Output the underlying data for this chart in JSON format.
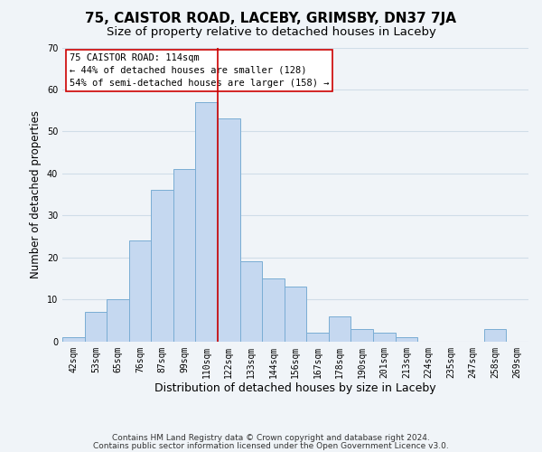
{
  "title1": "75, CAISTOR ROAD, LACEBY, GRIMSBY, DN37 7JA",
  "title2": "Size of property relative to detached houses in Laceby",
  "xlabel": "Distribution of detached houses by size in Laceby",
  "ylabel": "Number of detached properties",
  "bar_labels": [
    "42sqm",
    "53sqm",
    "65sqm",
    "76sqm",
    "87sqm",
    "99sqm",
    "110sqm",
    "122sqm",
    "133sqm",
    "144sqm",
    "156sqm",
    "167sqm",
    "178sqm",
    "190sqm",
    "201sqm",
    "213sqm",
    "224sqm",
    "235sqm",
    "247sqm",
    "258sqm",
    "269sqm"
  ],
  "bar_heights": [
    1,
    7,
    10,
    24,
    36,
    41,
    57,
    53,
    19,
    15,
    13,
    2,
    6,
    3,
    2,
    1,
    0,
    0,
    0,
    3,
    0
  ],
  "bar_color": "#c5d8f0",
  "bar_edge_color": "#7aadd4",
  "grid_color": "#d0dde8",
  "property_line_x": 6,
  "property_line_color": "#cc0000",
  "annotation_line1": "75 CAISTOR ROAD: 114sqm",
  "annotation_line2": "← 44% of detached houses are smaller (128)",
  "annotation_line3": "54% of semi-detached houses are larger (158) →",
  "annotation_box_facecolor": "#ffffff",
  "annotation_box_edgecolor": "#cc0000",
  "footnote1": "Contains HM Land Registry data © Crown copyright and database right 2024.",
  "footnote2": "Contains public sector information licensed under the Open Government Licence v3.0.",
  "ylim": [
    0,
    70
  ],
  "yticks": [
    0,
    10,
    20,
    30,
    40,
    50,
    60,
    70
  ],
  "title1_fontsize": 11,
  "title2_fontsize": 9.5,
  "xlabel_fontsize": 9,
  "ylabel_fontsize": 8.5,
  "tick_fontsize": 7,
  "annotation_fontsize": 7.5,
  "footnote_fontsize": 6.5,
  "background_color": "#f0f4f8"
}
